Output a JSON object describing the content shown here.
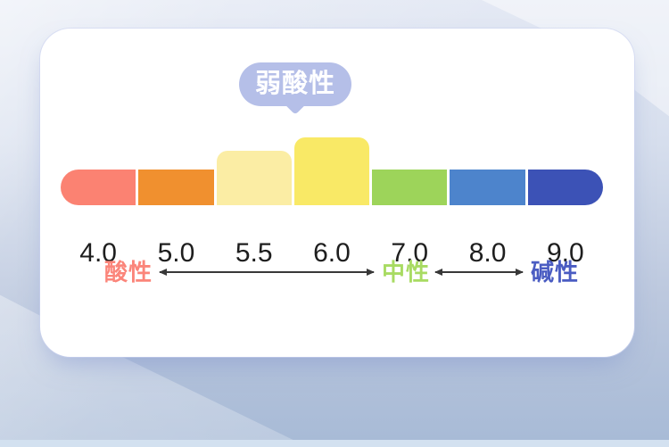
{
  "page": {
    "background": {
      "top_color": "#e4e9f4",
      "bottom_color": "#a7bad6",
      "bottom_strip_color": "#d3e1f0",
      "card_color": "#ffffff"
    }
  },
  "card": {
    "tooltip": {
      "label": "弱酸性",
      "bg_color": "#b5bfe8",
      "text_color": "#ffffff"
    },
    "bar": {
      "tick_color": "#1e1e1e",
      "segments": [
        {
          "label": "4.0",
          "color": "#fb8272",
          "height": 40
        },
        {
          "label": "5.0",
          "color": "#f0902f",
          "height": 40
        },
        {
          "label": "5.5",
          "color": "#fbeda4",
          "height": 61
        },
        {
          "label": "6.0",
          "color": "#f9e966",
          "height": 76
        },
        {
          "label": "7.0",
          "color": "#9dd45a",
          "height": 40
        },
        {
          "label": "8.0",
          "color": "#4d84cc",
          "height": 40
        },
        {
          "label": "9.0",
          "color": "#3c52b6",
          "height": 40
        }
      ]
    },
    "zones": [
      {
        "label": "酸性",
        "color": "#fb857a"
      },
      {
        "label": "中性",
        "color": "#a8db62"
      },
      {
        "label": "碱性",
        "color": "#4a5cc2"
      }
    ],
    "arrow_color": "#383838"
  },
  "chart_data": {
    "type": "bar",
    "title": "弱酸性",
    "categories": [
      "4.0",
      "5.0",
      "5.5",
      "6.0",
      "7.0",
      "8.0",
      "9.0"
    ],
    "values": [
      40,
      40,
      61,
      76,
      40,
      40,
      40
    ],
    "colors": [
      "#fb8272",
      "#f0902f",
      "#fbeda4",
      "#f9e966",
      "#9dd45a",
      "#4d84cc",
      "#3c52b6"
    ],
    "highlighted_categories": [
      "5.5",
      "6.0"
    ],
    "annotation": "弱酸性",
    "zone_labels": [
      "酸性",
      "中性",
      "碱性"
    ],
    "xlabel": "",
    "ylabel": "",
    "grid": false,
    "legend_position": "none"
  }
}
